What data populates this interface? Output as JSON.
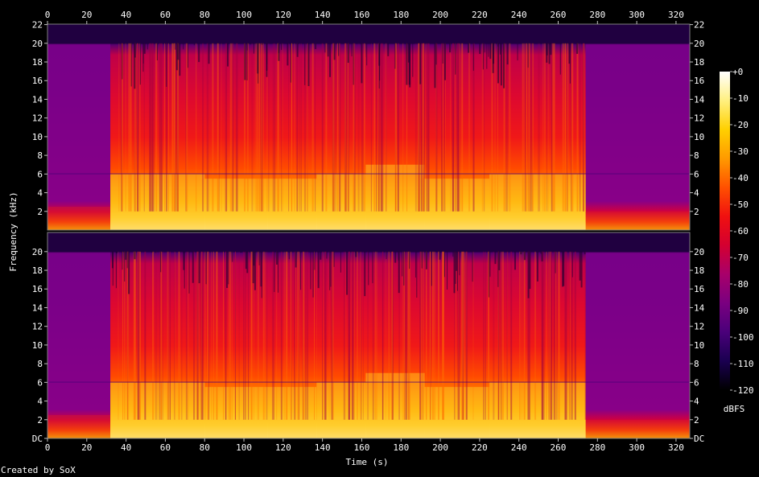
{
  "credit": "Created by SoX",
  "chart_data": {
    "type": "heatmap",
    "title": "",
    "xlabel": "Time (s)",
    "ylabel": "Frequency (kHz)",
    "xlim": [
      0,
      327
    ],
    "ylim_khz": [
      0,
      22.05
    ],
    "x_ticks": [
      "0",
      "20",
      "40",
      "60",
      "80",
      "100",
      "120",
      "140",
      "160",
      "180",
      "200",
      "220",
      "240",
      "260",
      "280",
      "300",
      "320"
    ],
    "x_tick_values": [
      0,
      20,
      40,
      60,
      80,
      100,
      120,
      140,
      160,
      180,
      200,
      220,
      240,
      260,
      280,
      300,
      320
    ],
    "y_ticks_top": [
      "22",
      "20",
      "18",
      "16",
      "14",
      "12",
      "10",
      "8",
      "6",
      "4",
      "2"
    ],
    "y_ticks_bottom": [
      "20",
      "18",
      "16",
      "14",
      "12",
      "10",
      "8",
      "6",
      "4",
      "2",
      "DC"
    ],
    "y_tick_values_top": [
      22,
      20,
      18,
      16,
      14,
      12,
      10,
      8,
      6,
      4,
      2
    ],
    "y_tick_values_bottom": [
      20,
      18,
      16,
      14,
      12,
      10,
      8,
      6,
      4,
      2,
      0
    ],
    "channels": 2,
    "colorbar": {
      "label": "dBFS",
      "ticks": [
        "+0",
        "-10",
        "-20",
        "-30",
        "-40",
        "-50",
        "-60",
        "-70",
        "-80",
        "-90",
        "-100",
        "-110",
        "-120"
      ],
      "tick_values": [
        0,
        -10,
        -20,
        -30,
        -40,
        -50,
        -60,
        -70,
        -80,
        -90,
        -100,
        -110,
        -120
      ],
      "range": [
        -120,
        0
      ],
      "colors": [
        "#000000",
        "#1a0050",
        "#4a007a",
        "#7a0080",
        "#a8006a",
        "#d40030",
        "#f01010",
        "#ff5000",
        "#ff9a00",
        "#ffd000",
        "#fff080",
        "#ffffff"
      ]
    },
    "cutoff_khz": 20,
    "segments": [
      {
        "start": 0,
        "end": 32,
        "level": "quiet",
        "bright_up_to_khz": 2.5
      },
      {
        "start": 32,
        "end": 80,
        "level": "loud",
        "bright_up_to_khz": 6
      },
      {
        "start": 80,
        "end": 112,
        "level": "loud",
        "bright_up_to_khz": 5.5
      },
      {
        "start": 112,
        "end": 137,
        "level": "loud",
        "bright_up_to_khz": 5.5
      },
      {
        "start": 137,
        "end": 162,
        "level": "loud",
        "bright_up_to_khz": 6
      },
      {
        "start": 162,
        "end": 192,
        "level": "loud",
        "bright_up_to_khz": 7
      },
      {
        "start": 192,
        "end": 225,
        "level": "loud",
        "bright_up_to_khz": 5.5
      },
      {
        "start": 225,
        "end": 274,
        "level": "loud",
        "bright_up_to_khz": 6
      },
      {
        "start": 274,
        "end": 327,
        "level": "quiet",
        "bright_up_to_khz": 2
      }
    ]
  }
}
